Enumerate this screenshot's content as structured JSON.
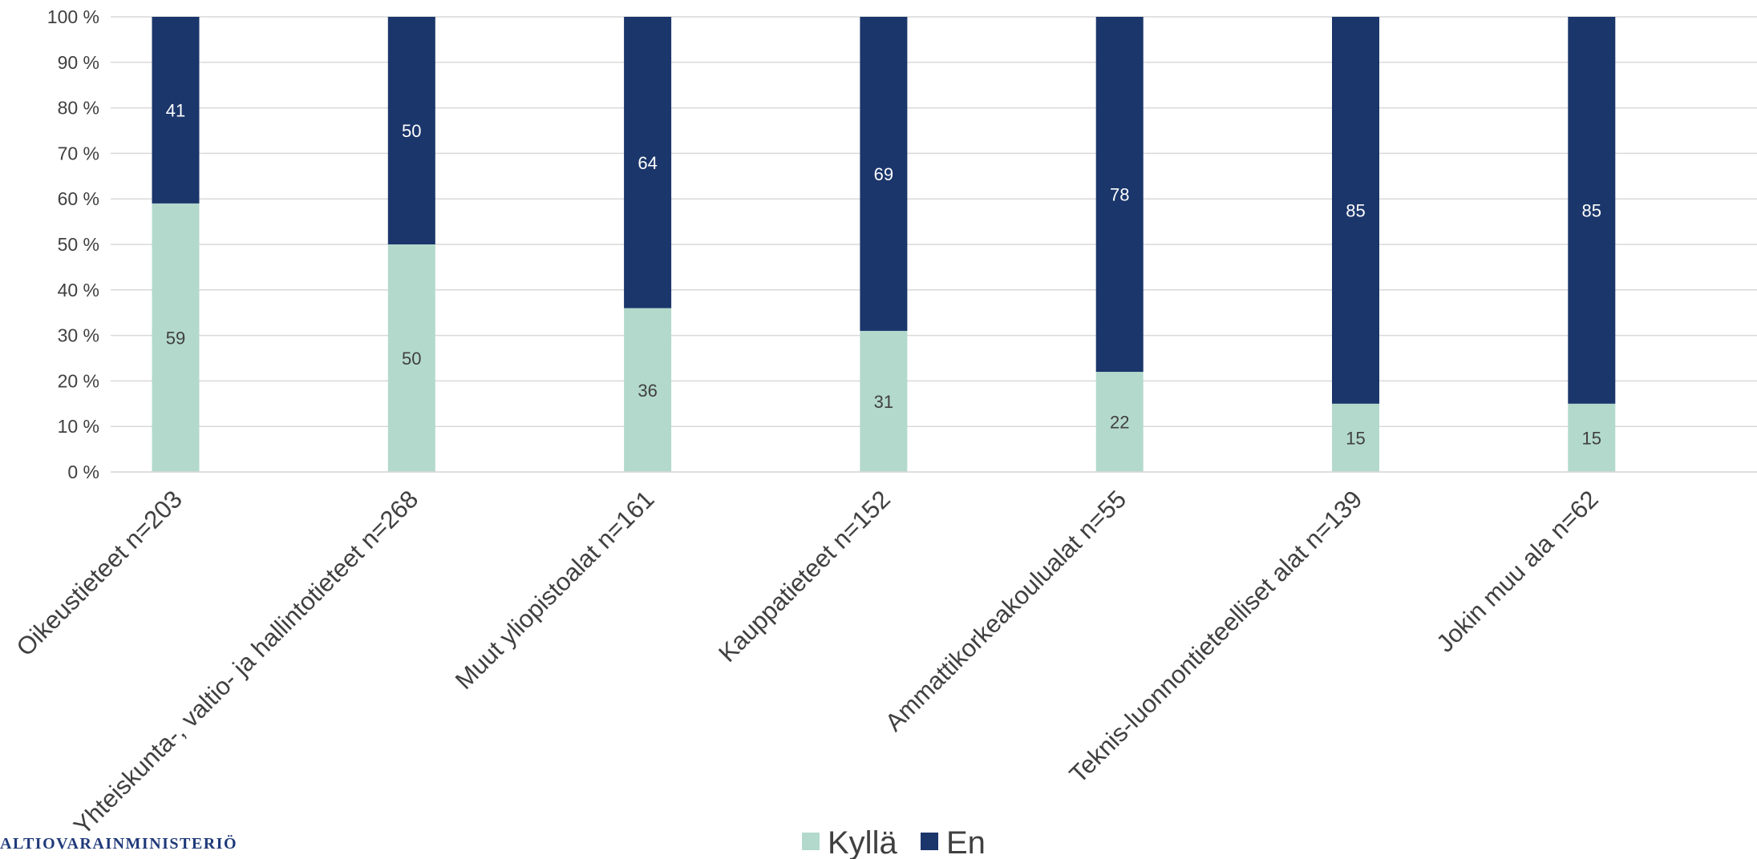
{
  "chart_data": {
    "type": "bar",
    "stacked": true,
    "percent_stacked": true,
    "categories": [
      "Oikeustieteet n=203",
      "Yhteiskunta-, valtio- ja hallintotieteet n=268",
      "Muut yliopistoalat n=161",
      "Kauppatieteet n=152",
      "Ammattikorkeakoulualat n=55",
      "Teknis-luonnontieteelliset alat n=139",
      "Jokin muu ala n=62"
    ],
    "series": [
      {
        "name": "Kyllä",
        "color": "#b3d9cc",
        "label_color": "#404040",
        "values": [
          59,
          50,
          36,
          31,
          22,
          15,
          15
        ]
      },
      {
        "name": "En",
        "color": "#1b366b",
        "label_color": "#ffffff",
        "values": [
          41,
          50,
          64,
          69,
          78,
          85,
          85
        ]
      }
    ],
    "y_ticks": [
      "0 %",
      "10 %",
      "20 %",
      "30 %",
      "40 %",
      "50 %",
      "60 %",
      "70 %",
      "80 %",
      "90 %",
      "100 %"
    ],
    "ylim": [
      0,
      100
    ],
    "grid": true,
    "legend": "bottom-center",
    "title": "",
    "xlabel": "",
    "ylabel": ""
  },
  "logo_text": "ALTIOVARAINMINISTERIÖ"
}
